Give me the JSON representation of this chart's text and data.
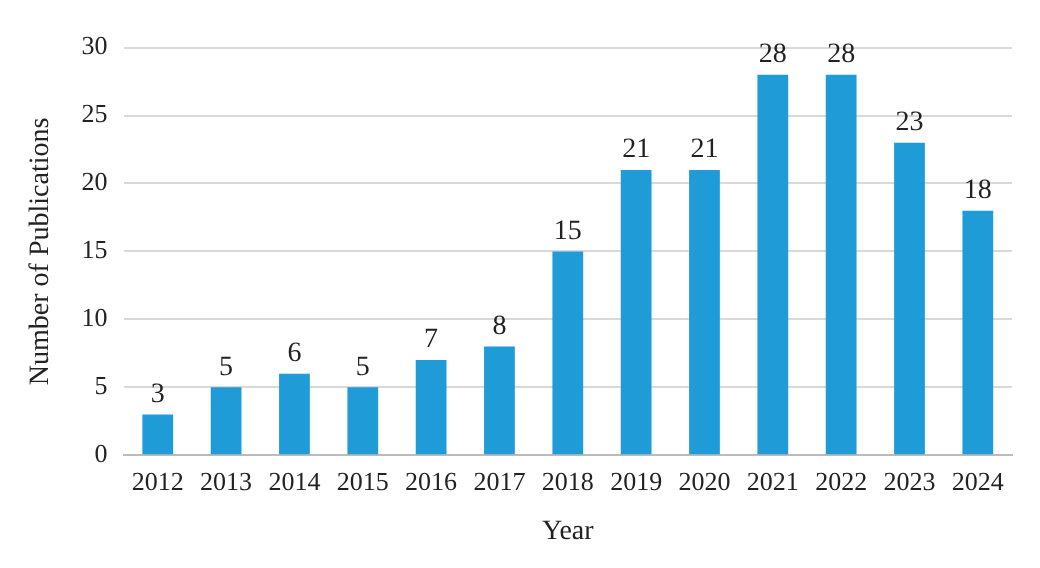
{
  "chart_data": {
    "type": "bar",
    "xlabel": "Year",
    "ylabel": "Number of Publications",
    "categories": [
      "2012",
      "2013",
      "2014",
      "2015",
      "2016",
      "2017",
      "2018",
      "2019",
      "2020",
      "2021",
      "2022",
      "2023",
      "2024"
    ],
    "values": [
      3,
      5,
      6,
      5,
      7,
      8,
      15,
      21,
      21,
      28,
      28,
      23,
      18
    ],
    "color": "#1f9bd7",
    "ylim": [
      0,
      30
    ],
    "yticks": [
      0,
      5,
      10,
      15,
      20,
      25,
      30
    ],
    "grid": "y",
    "data_labels": true,
    "legend": false
  }
}
